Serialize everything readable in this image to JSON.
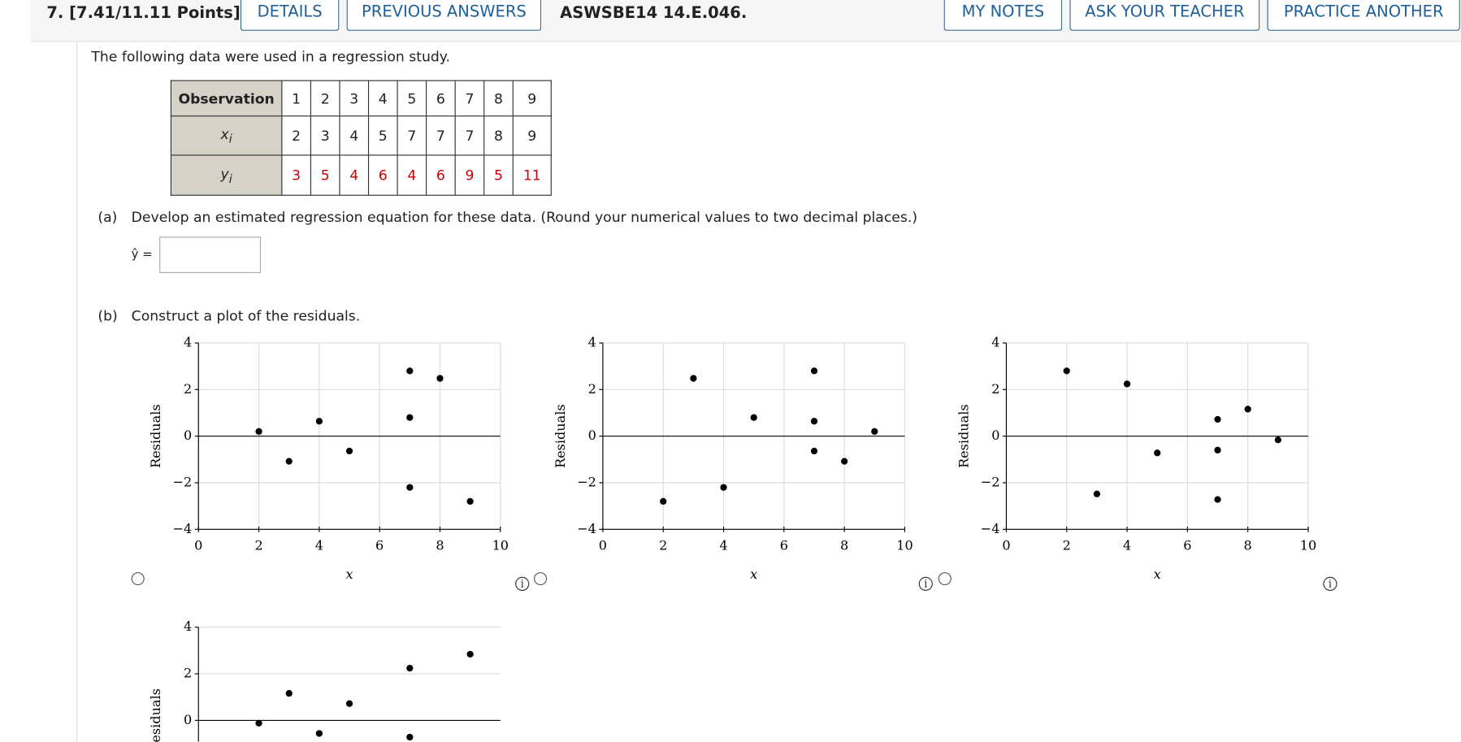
{
  "header": {
    "question": "7. [7.41/11.11 Points]",
    "buttons_left": [
      "DETAILS",
      "PREVIOUS ANSWERS"
    ],
    "code": "ASWSBE14 14.E.046.",
    "buttons_right": [
      "MY NOTES",
      "ASK YOUR TEACHER",
      "PRACTICE ANOTHER"
    ]
  },
  "intro": "The following data were used in a regression study.",
  "table": {
    "rows": [
      {
        "label": "Observation",
        "cells": [
          1,
          2,
          3,
          4,
          5,
          6,
          7,
          8,
          9
        ]
      },
      {
        "label": "x",
        "sub": "i",
        "cells": [
          2,
          3,
          4,
          5,
          7,
          7,
          7,
          8,
          9
        ]
      },
      {
        "label": "y",
        "sub": "i",
        "cells": [
          3,
          5,
          4,
          6,
          4,
          6,
          9,
          5,
          11
        ]
      }
    ]
  },
  "part_a": {
    "marker": "(a)",
    "text": "Develop an estimated regression equation for these data. (Round your numerical values to two decimal places.)",
    "answer_label": "ŷ ="
  },
  "part_b": {
    "marker": "(b)",
    "text": "Construct a plot of the residuals."
  },
  "chart_data": [
    {
      "type": "scatter",
      "xlabel": "x",
      "ylabel": "Residuals",
      "xlim": [
        0,
        10
      ],
      "ylim": [
        -4,
        4
      ],
      "xticks": [
        0,
        2,
        4,
        6,
        8,
        10
      ],
      "yticks": [
        {
          "value": -4,
          "label": "−4"
        },
        {
          "value": -2,
          "label": "−2"
        },
        0,
        2,
        4
      ],
      "grid": true,
      "color": "#000000",
      "x": [
        2,
        3,
        4,
        5,
        7,
        7,
        7,
        8,
        9
      ],
      "y": [
        0.2,
        -1.08,
        0.64,
        -0.64,
        2.8,
        0.8,
        -2.2,
        2.48,
        -2.8
      ]
    },
    {
      "type": "scatter",
      "xlabel": "x",
      "ylabel": "Residuals",
      "xlim": [
        0,
        10
      ],
      "ylim": [
        -4,
        4
      ],
      "xticks": [
        0,
        2,
        4,
        6,
        8,
        10
      ],
      "yticks": [
        {
          "value": -4,
          "label": "−4"
        },
        {
          "value": -2,
          "label": "−2"
        },
        0,
        2,
        4
      ],
      "grid": true,
      "color": "#000000",
      "x": [
        2,
        3,
        4,
        5,
        7,
        7,
        7,
        8,
        9
      ],
      "y": [
        -2.8,
        2.48,
        -2.2,
        0.8,
        2.8,
        0.64,
        -0.64,
        -1.08,
        0.2
      ]
    },
    {
      "type": "scatter",
      "xlabel": "x",
      "ylabel": "Residuals",
      "xlim": [
        0,
        10
      ],
      "ylim": [
        -4,
        4
      ],
      "xticks": [
        0,
        2,
        4,
        6,
        8,
        10
      ],
      "yticks": [
        {
          "value": -4,
          "label": "−4"
        },
        {
          "value": -2,
          "label": "−2"
        },
        0,
        2,
        4
      ],
      "grid": true,
      "color": "#000000",
      "x": [
        2,
        3,
        4,
        5,
        7,
        7,
        7,
        8,
        9
      ],
      "y": [
        2.8,
        -2.48,
        2.24,
        -0.72,
        0.72,
        -0.6,
        -2.72,
        1.16,
        -0.16
      ]
    },
    {
      "type": "scatter",
      "ylabel": "Residuals",
      "xlim": [
        0,
        10
      ],
      "ylim": [
        -4,
        4
      ],
      "yticks": [
        0,
        2,
        4
      ],
      "grid": true,
      "color": "#000000",
      "x": [
        2,
        3,
        4,
        5,
        7,
        7,
        9
      ],
      "y": [
        -0.12,
        1.16,
        -0.56,
        0.72,
        2.24,
        -0.72,
        2.84
      ]
    }
  ]
}
